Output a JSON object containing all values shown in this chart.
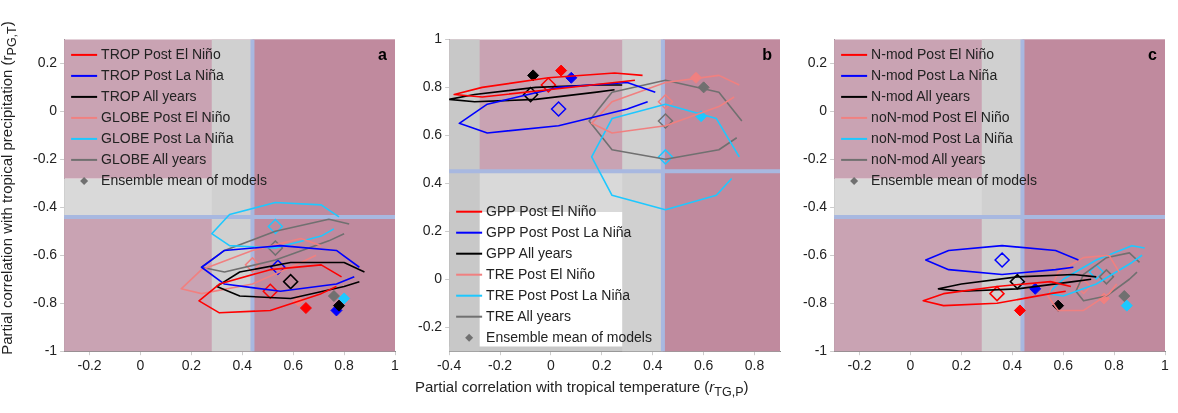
{
  "chart_data": [
    {
      "type": "scatter",
      "ylabel": "Partial correlation with tropical precipitation (r$_{PG,T}$)",
      "annotations": [
        "a"
      ],
      "xlim": [
        -0.3,
        1
      ],
      "ylim": [
        -1,
        0.3
      ],
      "xticks": [
        -0.2,
        0,
        0.2,
        0.4,
        0.6,
        0.8,
        1
      ],
      "yticks": [
        -1,
        -0.8,
        -0.6,
        -0.4,
        -0.2,
        0,
        0.2
      ],
      "grid": false,
      "legend": "top left",
      "bands": [
        {
          "axis": "y",
          "from": -1,
          "to": -0.44,
          "color": "#c9a3b3"
        },
        {
          "axis": "y",
          "from": -0.44,
          "to": -0.28,
          "color": "#d9d9d9"
        },
        {
          "axis": "y",
          "from": -0.28,
          "to": 0.3,
          "color": "#c9a3b3"
        },
        {
          "axis": "x",
          "from": 0.28,
          "to": 0.44,
          "color": "#d0d0d0"
        },
        {
          "axis": "x",
          "from": 0.44,
          "to": 1,
          "color": "#c08a9e"
        }
      ],
      "ref_lines": [
        {
          "axis": "x",
          "value": 0.44,
          "color": "#a8b8e0"
        },
        {
          "axis": "y",
          "value": -0.44,
          "color": "#a8b8e0"
        }
      ],
      "series": [
        {
          "name": "TROP Post El Niño",
          "type": "line",
          "color": "#ff0000",
          "marker": "none",
          "x": [
            0.79,
            0.71,
            0.51,
            0.31,
            0.23,
            0.31,
            0.51,
            0.71,
            0.77
          ],
          "values": [
            -0.69,
            -0.64,
            -0.66,
            -0.72,
            -0.79,
            -0.84,
            -0.83,
            -0.76,
            -0.73
          ]
        },
        {
          "name": "TROP Post La Niña",
          "type": "line",
          "color": "#0000ff",
          "marker": "none",
          "x": [
            0.86,
            0.77,
            0.55,
            0.33,
            0.24,
            0.33,
            0.55,
            0.77,
            0.84
          ],
          "values": [
            -0.65,
            -0.58,
            -0.56,
            -0.58,
            -0.65,
            -0.72,
            -0.75,
            -0.72,
            -0.69
          ]
        },
        {
          "name": "TROP All years",
          "type": "line",
          "color": "#000000",
          "marker": "none",
          "x": [
            0.88,
            0.8,
            0.59,
            0.39,
            0.3,
            0.39,
            0.59,
            0.8,
            0.86
          ],
          "values": [
            -0.67,
            -0.63,
            -0.63,
            -0.67,
            -0.73,
            -0.77,
            -0.78,
            -0.73,
            -0.71
          ]
        },
        {
          "name": "GLOBE Post El Niño",
          "type": "line",
          "color": "#f08080",
          "marker": "none",
          "x": [
            0.71,
            0.63,
            0.44,
            0.24,
            0.16,
            0.24,
            0.44,
            0.63,
            0.69
          ],
          "values": [
            -0.56,
            -0.53,
            -0.58,
            -0.66,
            -0.74,
            -0.76,
            -0.72,
            -0.63,
            -0.6
          ]
        },
        {
          "name": "GLOBE Post La Niña",
          "type": "line",
          "color": "#1ec8ff",
          "marker": "none",
          "x": [
            0.78,
            0.71,
            0.53,
            0.35,
            0.28,
            0.35,
            0.53,
            0.71,
            0.76
          ],
          "values": [
            -0.44,
            -0.39,
            -0.38,
            -0.43,
            -0.51,
            -0.56,
            -0.57,
            -0.52,
            -0.49
          ]
        },
        {
          "name": "GLOBE All years",
          "type": "line",
          "color": "#707070",
          "marker": "none",
          "x": [
            0.82,
            0.74,
            0.53,
            0.33,
            0.24,
            0.33,
            0.53,
            0.74,
            0.8
          ],
          "values": [
            -0.47,
            -0.45,
            -0.5,
            -0.58,
            -0.65,
            -0.67,
            -0.62,
            -0.54,
            -0.51
          ]
        },
        {
          "type": "scatter",
          "marker": "diamond",
          "colors": [
            "#ff0000",
            "#0000ff",
            "#000000",
            "#f08080",
            "#1ec8ff",
            "#707070"
          ],
          "x": [
            0.51,
            0.54,
            0.59,
            0.44,
            0.53,
            0.53
          ],
          "values": [
            -0.75,
            -0.65,
            -0.71,
            -0.64,
            -0.48,
            -0.57
          ]
        },
        {
          "name": "Ensemble mean of models",
          "type": "scatter",
          "marker": "diamond",
          "color": "#707070",
          "colors": [
            "#ff0000",
            "#0000ff",
            "#000000",
            "#f08080",
            "#1ec8ff",
            "#707070"
          ],
          "x": [
            0.65,
            0.77,
            0.78,
            0.62,
            0.8,
            0.76
          ],
          "values": [
            -0.82,
            -0.83,
            -0.81,
            -0.79,
            -0.78,
            -0.77
          ]
        }
      ]
    },
    {
      "type": "scatter",
      "xlabel": "Partial correlation with tropical temperature (r$_{TG,P}$)",
      "annotations": [
        "b"
      ],
      "xlim": [
        -0.4,
        0.9
      ],
      "ylim": [
        -0.3,
        1
      ],
      "xticks": [
        -0.4,
        -0.2,
        0,
        0.2,
        0.4,
        0.6,
        0.8
      ],
      "yticks": [
        -0.2,
        0,
        0.2,
        0.4,
        0.6,
        0.8,
        1
      ],
      "grid": false,
      "legend": "bottom left",
      "bands": [
        {
          "axis": "y",
          "from": 0.45,
          "to": 1,
          "color": "#c9a3b3"
        },
        {
          "axis": "y",
          "from": 0.28,
          "to": 0.45,
          "color": "#d9d9d9"
        },
        {
          "axis": "y",
          "from": -0.3,
          "to": -0.28,
          "color": "#c8c8c8"
        },
        {
          "axis": "x",
          "from": -0.4,
          "to": -0.28,
          "color": "#c8c8c8"
        },
        {
          "axis": "x",
          "from": 0.28,
          "to": 0.44,
          "color": "#d0d0d0"
        },
        {
          "axis": "x",
          "from": 0.44,
          "to": 0.9,
          "color": "#c08a9e"
        }
      ],
      "ref_lines": [
        {
          "axis": "x",
          "value": 0.44,
          "color": "#a8b8e0"
        },
        {
          "axis": "y",
          "value": 0.45,
          "color": "#a8b8e0"
        }
      ],
      "series": [
        {
          "name": "GPP Post El Niño",
          "type": "line",
          "color": "#ff0000",
          "marker": "none",
          "x": [
            0.36,
            0.25,
            -0.01,
            -0.27,
            -0.38,
            -0.27,
            -0.01,
            0.25,
            0.33
          ],
          "values": [
            0.85,
            0.86,
            0.84,
            0.8,
            0.77,
            0.76,
            0.79,
            0.82,
            0.83
          ]
        },
        {
          "name": "GPP Post Post La Niña",
          "type": "line",
          "color": "#0000ff",
          "marker": "none",
          "x": [
            0.41,
            0.3,
            0.03,
            -0.25,
            -0.36,
            -0.25,
            0.03,
            0.3,
            0.38
          ],
          "values": [
            0.78,
            0.82,
            0.8,
            0.73,
            0.65,
            0.61,
            0.64,
            0.71,
            0.74
          ]
        },
        {
          "name": "GPP All years",
          "type": "line",
          "color": "#000000",
          "marker": "none",
          "x": [
            0.28,
            0.18,
            -0.06,
            -0.3,
            -0.4,
            -0.3,
            -0.06,
            0.18,
            0.25
          ],
          "values": [
            0.81,
            0.81,
            0.8,
            0.77,
            0.75,
            0.74,
            0.75,
            0.78,
            0.79
          ]
        },
        {
          "name": "TRE Post El Niño",
          "type": "line",
          "color": "#f08080",
          "marker": "none",
          "x": [
            0.74,
            0.66,
            0.45,
            0.24,
            0.16,
            0.24,
            0.45,
            0.66,
            0.72
          ],
          "values": [
            0.81,
            0.85,
            0.82,
            0.74,
            0.65,
            0.61,
            0.64,
            0.72,
            0.76
          ]
        },
        {
          "name": "TRE Post Post La Niña",
          "type": "line",
          "color": "#1ec8ff",
          "marker": "none",
          "x": [
            0.74,
            0.65,
            0.45,
            0.24,
            0.16,
            0.24,
            0.45,
            0.65,
            0.71
          ],
          "values": [
            0.51,
            0.67,
            0.73,
            0.67,
            0.51,
            0.35,
            0.29,
            0.35,
            0.42
          ]
        },
        {
          "name": "TRE All years",
          "type": "line",
          "color": "#707070",
          "marker": "none",
          "x": [
            0.75,
            0.66,
            0.45,
            0.24,
            0.15,
            0.24,
            0.45,
            0.66,
            0.73
          ],
          "values": [
            0.66,
            0.78,
            0.83,
            0.78,
            0.66,
            0.54,
            0.5,
            0.54,
            0.59
          ]
        },
        {
          "type": "scatter",
          "marker": "diamond",
          "colors": [
            "#ff0000",
            "#0000ff",
            "#000000",
            "#f08080",
            "#1ec8ff",
            "#707070"
          ],
          "x": [
            -0.01,
            0.03,
            -0.08,
            0.45,
            0.45,
            0.45
          ],
          "values": [
            0.81,
            0.71,
            0.77,
            0.74,
            0.51,
            0.66
          ]
        },
        {
          "name": "Ensemble mean of models",
          "type": "scatter",
          "marker": "diamond",
          "color": "#707070",
          "colors": [
            "#ff0000",
            "#0000ff",
            "#000000",
            "#f08080",
            "#1ec8ff",
            "#707070"
          ],
          "x": [
            0.04,
            0.08,
            -0.07,
            0.57,
            0.59,
            0.6
          ],
          "values": [
            0.87,
            0.84,
            0.85,
            0.84,
            0.68,
            0.8
          ]
        }
      ]
    },
    {
      "type": "scatter",
      "annotations": [
        "c"
      ],
      "xlim": [
        -0.3,
        1
      ],
      "ylim": [
        -1,
        0.3
      ],
      "xticks": [
        -0.2,
        0,
        0.2,
        0.4,
        0.6,
        0.8,
        1
      ],
      "yticks": [
        -1,
        -0.8,
        -0.6,
        -0.4,
        -0.2,
        0,
        0.2
      ],
      "grid": false,
      "legend": "top left",
      "bands": [
        {
          "axis": "y",
          "from": -1,
          "to": -0.44,
          "color": "#c9a3b3"
        },
        {
          "axis": "y",
          "from": -0.44,
          "to": -0.28,
          "color": "#d9d9d9"
        },
        {
          "axis": "y",
          "from": -0.28,
          "to": 0.3,
          "color": "#c9a3b3"
        },
        {
          "axis": "x",
          "from": 0.28,
          "to": 0.44,
          "color": "#d0d0d0"
        },
        {
          "axis": "x",
          "from": 0.44,
          "to": 1,
          "color": "#c08a9e"
        }
      ],
      "ref_lines": [
        {
          "axis": "x",
          "value": 0.44,
          "color": "#a8b8e0"
        },
        {
          "axis": "y",
          "value": -0.44,
          "color": "#a8b8e0"
        }
      ],
      "series": [
        {
          "name": "N-mod Post El Niño",
          "type": "line",
          "color": "#ff0000",
          "marker": "none",
          "x": [
            0.63,
            0.55,
            0.34,
            0.13,
            0.05,
            0.13,
            0.34,
            0.55,
            0.61
          ],
          "values": [
            -0.73,
            -0.71,
            -0.73,
            -0.76,
            -0.79,
            -0.81,
            -0.8,
            -0.76,
            -0.75
          ]
        },
        {
          "name": "N-mod Post La Niña",
          "type": "line",
          "color": "#0000ff",
          "marker": "none",
          "x": [
            0.66,
            0.57,
            0.36,
            0.15,
            0.06,
            0.15,
            0.36,
            0.57,
            0.64
          ],
          "values": [
            -0.62,
            -0.58,
            -0.56,
            -0.58,
            -0.62,
            -0.66,
            -0.68,
            -0.66,
            -0.65
          ]
        },
        {
          "name": "N-mod All years",
          "type": "line",
          "color": "#000000",
          "marker": "none",
          "x": [
            0.73,
            0.64,
            0.42,
            0.2,
            0.11,
            0.2,
            0.42,
            0.64,
            0.71
          ],
          "values": [
            -0.69,
            -0.68,
            -0.69,
            -0.72,
            -0.74,
            -0.75,
            -0.74,
            -0.71,
            -0.7
          ]
        },
        {
          "name": "noN-mod Post El Niño",
          "type": "line",
          "color": "#f08080",
          "marker": "none",
          "x": [
            0.82,
            0.78,
            0.68,
            0.58,
            0.54,
            0.58,
            0.68,
            0.78,
            0.81
          ],
          "values": [
            -0.67,
            -0.6,
            -0.61,
            -0.67,
            -0.77,
            -0.83,
            -0.83,
            -0.76,
            -0.72
          ]
        },
        {
          "name": "noN-mod Post La Niña",
          "type": "line",
          "color": "#1ec8ff",
          "marker": "none",
          "x": [
            0.92,
            0.87,
            0.73,
            0.6,
            0.54,
            0.6,
            0.73,
            0.87,
            0.91
          ],
          "values": [
            -0.57,
            -0.56,
            -0.62,
            -0.7,
            -0.76,
            -0.77,
            -0.72,
            -0.63,
            -0.6
          ]
        },
        {
          "name": "noN-mod All years",
          "type": "line",
          "color": "#707070",
          "marker": "none",
          "x": [
            0.9,
            0.86,
            0.77,
            0.68,
            0.65,
            0.68,
            0.77,
            0.86,
            0.89
          ],
          "values": [
            -0.63,
            -0.59,
            -0.61,
            -0.68,
            -0.75,
            -0.79,
            -0.77,
            -0.7,
            -0.67
          ]
        },
        {
          "type": "scatter",
          "marker": "diamond",
          "colors": [
            "#ff0000",
            "#0000ff",
            "#000000",
            "#f08080",
            "#1ec8ff",
            "#707070"
          ],
          "x": [
            0.34,
            0.36,
            0.42,
            0.68,
            0.73,
            0.77
          ],
          "values": [
            -0.76,
            -0.62,
            -0.71,
            -0.73,
            -0.67,
            -0.69
          ]
        },
        {
          "name": "Ensemble mean of models",
          "type": "scatter",
          "marker": "diamond",
          "color": "#707070",
          "colors": [
            "#ff0000",
            "#0000ff",
            "#000000",
            "#f08080",
            "#1ec8ff",
            "#707070"
          ],
          "x": [
            0.43,
            0.49,
            0.58,
            0.76,
            0.85,
            0.84
          ],
          "values": [
            -0.83,
            -0.74,
            -0.81,
            -0.78,
            -0.81,
            -0.77
          ]
        }
      ]
    }
  ]
}
